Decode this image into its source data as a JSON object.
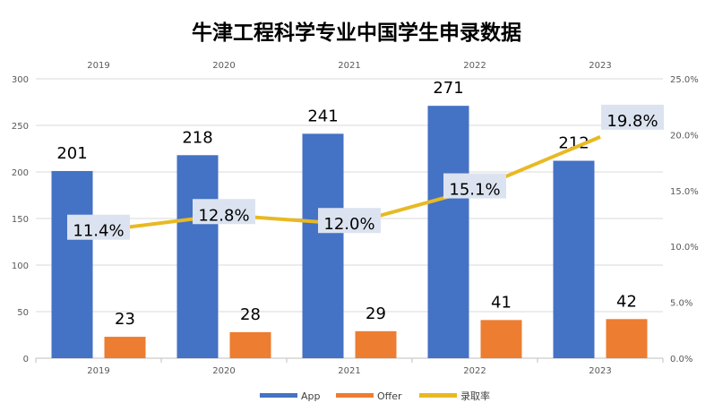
{
  "chart_data": {
    "type": "bar",
    "title": "牛津工程科学专业中国学生申录数据",
    "categories": [
      "2019",
      "2020",
      "2021",
      "2022",
      "2023"
    ],
    "series": [
      {
        "name": "App",
        "type": "bar",
        "axis": "left",
        "color": "#4472C4",
        "values": [
          201,
          218,
          241,
          271,
          212
        ]
      },
      {
        "name": "Offer",
        "type": "bar",
        "axis": "left",
        "color": "#ED7D31",
        "values": [
          23,
          28,
          29,
          41,
          42
        ]
      },
      {
        "name": "录取率",
        "type": "line",
        "axis": "right",
        "color": "#E8B923",
        "values": [
          11.4,
          12.8,
          12.0,
          15.1,
          19.8
        ],
        "labels": [
          "11.4%",
          "12.8%",
          "12.0%",
          "15.1%",
          "19.8%"
        ]
      }
    ],
    "ylim": [
      0,
      300
    ],
    "yticks": [
      "0",
      "50",
      "100",
      "150",
      "200",
      "250",
      "300"
    ],
    "y2lim": [
      0,
      25
    ],
    "y2ticks": [
      "0.0%",
      "5.0%",
      "10.0%",
      "15.0%",
      "20.0%",
      "25.0%"
    ],
    "legend": "bottom",
    "grid": true
  }
}
